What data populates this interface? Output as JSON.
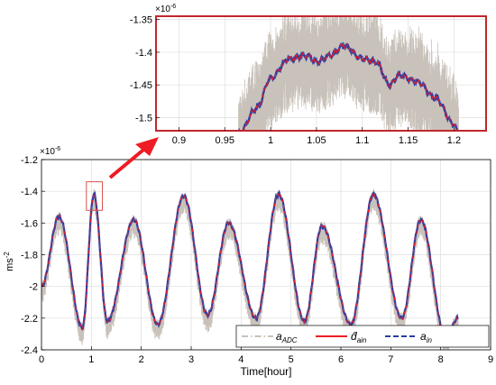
{
  "chart_data": [
    {
      "type": "line",
      "panel": "main",
      "xlabel": "Time[hour]",
      "ylabel": "ms",
      "ylabel_exp": "-2",
      "y_exponent": "×10",
      "y_exponent_power": "-6",
      "xlim": [
        0,
        9
      ],
      "ylim": [
        -2.4,
        -1.2
      ],
      "x_ticks": [
        "0",
        "1",
        "2",
        "3",
        "4",
        "5",
        "6",
        "7",
        "8",
        "9"
      ],
      "y_ticks": [
        "-1.2",
        "-1.4",
        "-1.6",
        "-1.8",
        "-2",
        "-2.2",
        "-2.4"
      ],
      "grid": true,
      "legend_position": "bottom-right",
      "signal_time_span": [
        0,
        8.35
      ],
      "signal_extremes": {
        "x": [
          0.0,
          0.35,
          0.82,
          1.05,
          1.32,
          1.85,
          2.33,
          2.85,
          3.33,
          3.75,
          4.3,
          4.75,
          5.27,
          5.62,
          6.2,
          6.65,
          7.22,
          7.6,
          8.1,
          8.35
        ],
        "y": [
          -2.0,
          -1.56,
          -2.26,
          -1.42,
          -2.22,
          -1.58,
          -2.24,
          -1.43,
          -2.18,
          -1.6,
          -2.2,
          -1.42,
          -2.22,
          -1.62,
          -2.24,
          -1.42,
          -2.2,
          -1.58,
          -2.32,
          -2.2
        ]
      },
      "series": [
        {
          "name": "a",
          "subscript": "ADC",
          "color": "#c9c2ba",
          "style": "dash-dot"
        },
        {
          "name": "d̂",
          "subscript": "ain",
          "color": "#ee1c24",
          "style": "solid"
        },
        {
          "name": "a",
          "subscript": "in",
          "color": "#2b3ea3",
          "style": "dashed"
        }
      ],
      "highlight_box": {
        "x": [
          0.9,
          1.22
        ],
        "y": [
          -1.52,
          -1.34
        ],
        "color": "#d9534f"
      }
    },
    {
      "type": "line",
      "panel": "inset",
      "xlim": [
        0.875,
        1.235
      ],
      "ylim": [
        -1.52,
        -1.345
      ],
      "x_ticks": [
        "0.9",
        "0.95",
        "1",
        "1.05",
        "1.1",
        "1.15",
        "1.2"
      ],
      "y_ticks": [
        "-1.35",
        "-1.4",
        "-1.45",
        "-1.5"
      ],
      "y_exponent": "×10",
      "y_exponent_power": "-6",
      "grid": true,
      "frame_color": "#c0272d",
      "signal_time_span": [
        0.965,
        1.205
      ],
      "signal_extremes": {
        "x": [
          0.965,
          0.985,
          1.0,
          1.02,
          1.04,
          1.05,
          1.065,
          1.08,
          1.1,
          1.115,
          1.13,
          1.14,
          1.16,
          1.18,
          1.2,
          1.205
        ],
        "y": [
          -1.525,
          -1.485,
          -1.44,
          -1.41,
          -1.405,
          -1.415,
          -1.405,
          -1.39,
          -1.41,
          -1.415,
          -1.45,
          -1.435,
          -1.445,
          -1.47,
          -1.51,
          -1.525
        ]
      }
    }
  ]
}
